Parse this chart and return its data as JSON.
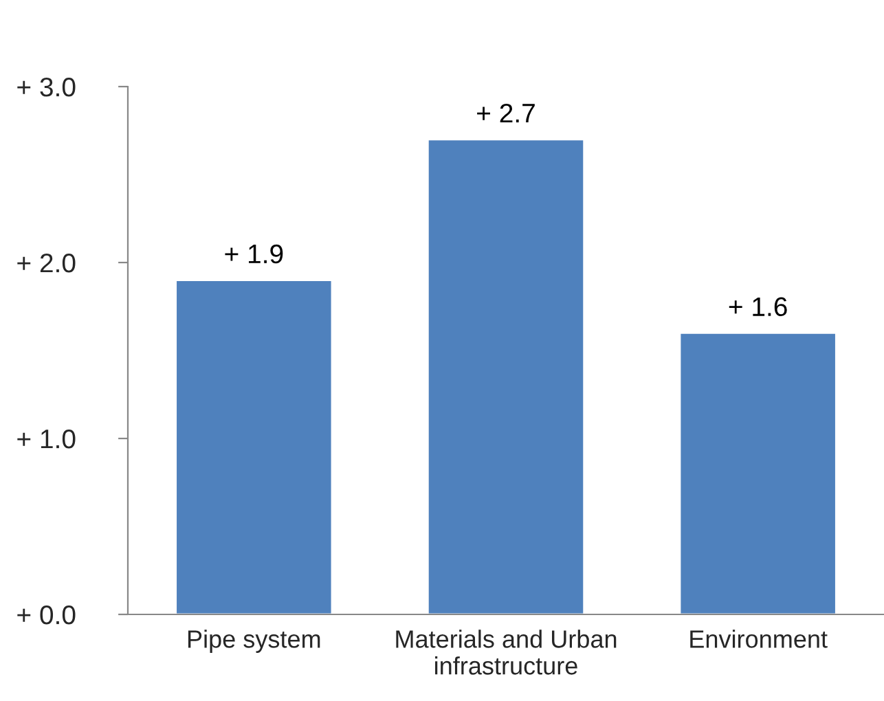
{
  "chart_data": {
    "type": "bar",
    "categories": [
      "Pipe system",
      "Materials and Urban\ninfrastructure",
      "Environment"
    ],
    "values": [
      1.9,
      2.7,
      1.6
    ],
    "value_labels": [
      "+ 1.9",
      "+ 2.7",
      "+ 1.6"
    ],
    "color": "#4f81bd",
    "ylim": [
      0,
      3
    ],
    "yticks": [
      {
        "value": 0,
        "label": "+ 0.0"
      },
      {
        "value": 1,
        "label": "+ 1.0"
      },
      {
        "value": 2,
        "label": "+ 2.0"
      },
      {
        "value": 3,
        "label": "+ 3.0"
      }
    ],
    "grid": false,
    "legend": false
  }
}
